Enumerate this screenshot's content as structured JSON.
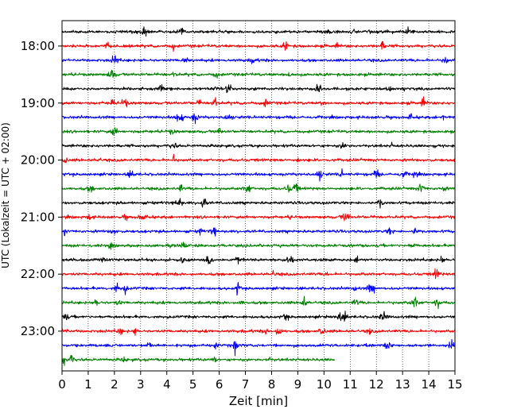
{
  "chart_data": {
    "type": "line",
    "subtype": "helicorder-seismogram",
    "xlabel": "Zeit  [min]",
    "ylabel": "UTC (Lokalzeit = UTC + 02:00)",
    "xlim": [
      0,
      15
    ],
    "x_ticks": [
      "0",
      "1",
      "2",
      "3",
      "4",
      "5",
      "6",
      "7",
      "8",
      "9",
      "10",
      "11",
      "12",
      "13",
      "14",
      "15"
    ],
    "y_ticks": [
      "18:00",
      "19:00",
      "20:00",
      "21:00",
      "22:00",
      "23:00"
    ],
    "x_grid": "dotted-vertical",
    "trace_interval_minutes": 15,
    "trace_colors": [
      "#000000",
      "#ff0000",
      "#0000ff",
      "#008000"
    ],
    "traces": [
      {
        "start": "17:45",
        "color": "#000000",
        "end_minute": 15
      },
      {
        "start": "18:00",
        "color": "#ff0000",
        "end_minute": 15
      },
      {
        "start": "18:15",
        "color": "#0000ff",
        "end_minute": 15
      },
      {
        "start": "18:30",
        "color": "#008000",
        "end_minute": 15
      },
      {
        "start": "18:45",
        "color": "#000000",
        "end_minute": 15
      },
      {
        "start": "19:00",
        "color": "#ff0000",
        "end_minute": 15
      },
      {
        "start": "19:15",
        "color": "#0000ff",
        "end_minute": 15
      },
      {
        "start": "19:30",
        "color": "#008000",
        "end_minute": 15
      },
      {
        "start": "19:45",
        "color": "#000000",
        "end_minute": 15
      },
      {
        "start": "20:00",
        "color": "#ff0000",
        "end_minute": 15
      },
      {
        "start": "20:15",
        "color": "#0000ff",
        "end_minute": 15
      },
      {
        "start": "20:30",
        "color": "#008000",
        "end_minute": 15
      },
      {
        "start": "20:45",
        "color": "#000000",
        "end_minute": 15
      },
      {
        "start": "21:00",
        "color": "#ff0000",
        "end_minute": 15
      },
      {
        "start": "21:15",
        "color": "#0000ff",
        "end_minute": 15
      },
      {
        "start": "21:30",
        "color": "#008000",
        "end_minute": 15
      },
      {
        "start": "21:45",
        "color": "#000000",
        "end_minute": 15
      },
      {
        "start": "22:00",
        "color": "#ff0000",
        "end_minute": 15
      },
      {
        "start": "22:15",
        "color": "#0000ff",
        "end_minute": 15
      },
      {
        "start": "22:30",
        "color": "#008000",
        "end_minute": 15
      },
      {
        "start": "22:45",
        "color": "#000000",
        "end_minute": 15
      },
      {
        "start": "23:00",
        "color": "#ff0000",
        "end_minute": 15
      },
      {
        "start": "23:15",
        "color": "#0000ff",
        "end_minute": 15
      },
      {
        "start": "23:30",
        "color": "#008000",
        "end_minute": 10.4
      }
    ]
  }
}
